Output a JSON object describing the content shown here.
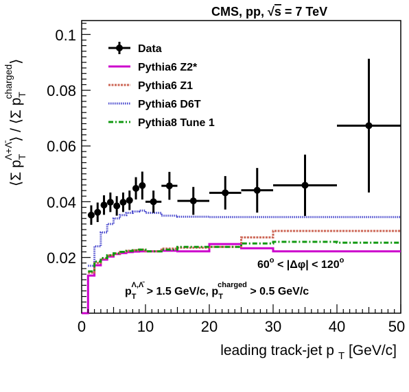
{
  "chart_data": {
    "type": "line",
    "title": "CMS, pp, √s = 7 TeV",
    "title_parts": {
      "prefix": "CMS, pp, ",
      "sqrt": "√",
      "s": "s",
      "suffix": " = 7 TeV"
    },
    "xlabel": {
      "main": "leading track-jet p",
      "sub": "T",
      "rest": " [GeV/c]"
    },
    "ylabel": {
      "open": "⟨Σ p",
      "sub": "T",
      "sup": "Λ+Λ̄",
      "middle": "⟩ / ⟨Σ p",
      "sub2": "T",
      "sup2": "charged",
      "close": "⟩"
    },
    "xlim": [
      0,
      50
    ],
    "ylim": [
      0,
      0.105
    ],
    "x_ticks": [
      0,
      10,
      20,
      30,
      40,
      50
    ],
    "x_tick_labels": [
      "0",
      "10",
      "20",
      "30",
      "40",
      "50"
    ],
    "y_ticks": [
      0.02,
      0.04,
      0.06,
      0.08,
      0.1
    ],
    "y_tick_labels": [
      "0.02",
      "0.04",
      "0.06",
      "0.08",
      "0.1"
    ],
    "legend_position": "top-left",
    "annotations": {
      "dphi": {
        "left": "60",
        "deg": "o",
        "mid": " < |Δφ| < 120",
        "deg2": "o"
      },
      "cuts": {
        "p1": "p",
        "sub1": "T",
        "sup1": "Λ,Λ̄",
        "mid": " > 1.5 GeV/c, p",
        "sub2": "T",
        "sup2": "charged",
        "end": " > 0.5 GeV/c"
      }
    },
    "data_series": {
      "name": "Data",
      "color": "#000000",
      "points": [
        {
          "x": 1.5,
          "xerr": 0.5,
          "y": 0.0352,
          "yerr": 0.0035
        },
        {
          "x": 2.5,
          "xerr": 0.5,
          "y": 0.0362,
          "yerr": 0.0035
        },
        {
          "x": 3.5,
          "xerr": 0.5,
          "y": 0.0388,
          "yerr": 0.0035
        },
        {
          "x": 4.5,
          "xerr": 0.5,
          "y": 0.0398,
          "yerr": 0.0035
        },
        {
          "x": 5.5,
          "xerr": 0.5,
          "y": 0.0385,
          "yerr": 0.0035
        },
        {
          "x": 6.5,
          "xerr": 0.5,
          "y": 0.0398,
          "yerr": 0.0035
        },
        {
          "x": 7.5,
          "xerr": 0.5,
          "y": 0.0405,
          "yerr": 0.0035
        },
        {
          "x": 8.5,
          "xerr": 0.5,
          "y": 0.0448,
          "yerr": 0.004
        },
        {
          "x": 9.5,
          "xerr": 0.5,
          "y": 0.0458,
          "yerr": 0.005
        },
        {
          "x": 11.25,
          "xerr": 1.25,
          "y": 0.04,
          "yerr": 0.004
        },
        {
          "x": 13.75,
          "xerr": 1.25,
          "y": 0.0457,
          "yerr": 0.005
        },
        {
          "x": 17.5,
          "xerr": 2.5,
          "y": 0.0403,
          "yerr": 0.005
        },
        {
          "x": 22.5,
          "xerr": 2.5,
          "y": 0.0432,
          "yerr": 0.006
        },
        {
          "x": 27.5,
          "xerr": 2.5,
          "y": 0.0441,
          "yerr": 0.008
        },
        {
          "x": 35,
          "xerr": 5,
          "y": 0.0459,
          "yerr": 0.011
        },
        {
          "x": 45,
          "xerr": 5,
          "y": 0.0673,
          "yerr": 0.024
        }
      ]
    },
    "series": [
      {
        "name": "Pythia6 Z2*",
        "color": "#cc00cc",
        "style": "solid",
        "steps": [
          [
            0,
            1,
            0.0
          ],
          [
            1,
            2,
            0.0135
          ],
          [
            2,
            3,
            0.0172
          ],
          [
            3,
            4,
            0.0192
          ],
          [
            4,
            5,
            0.0203
          ],
          [
            5,
            6,
            0.0212
          ],
          [
            6,
            7,
            0.0216
          ],
          [
            7,
            8,
            0.0219
          ],
          [
            8,
            9,
            0.0221
          ],
          [
            9,
            10,
            0.0222
          ],
          [
            10,
            12.5,
            0.0222
          ],
          [
            12.5,
            15,
            0.0224
          ],
          [
            15,
            20,
            0.0222
          ],
          [
            20,
            25,
            0.0248
          ],
          [
            25,
            30,
            0.0233
          ],
          [
            30,
            40,
            0.0222
          ],
          [
            40,
            50,
            0.0222
          ]
        ]
      },
      {
        "name": "Pythia6 Z1",
        "color": "#cc6655",
        "style": "dashed",
        "steps": [
          [
            1,
            2,
            0.0145
          ],
          [
            2,
            3,
            0.018
          ],
          [
            3,
            4,
            0.0196
          ],
          [
            4,
            5,
            0.0207
          ],
          [
            5,
            6,
            0.0214
          ],
          [
            6,
            7,
            0.022
          ],
          [
            7,
            8,
            0.0224
          ],
          [
            8,
            9,
            0.0226
          ],
          [
            9,
            10,
            0.0228
          ],
          [
            10,
            12.5,
            0.0222
          ],
          [
            12.5,
            15,
            0.0232
          ],
          [
            15,
            20,
            0.0235
          ],
          [
            20,
            25,
            0.0238
          ],
          [
            25,
            30,
            0.0272
          ],
          [
            30,
            40,
            0.0295
          ],
          [
            40,
            50,
            0.0295
          ]
        ]
      },
      {
        "name": "Pythia6 D6T",
        "color": "#4444cc",
        "style": "dotted",
        "steps": [
          [
            1,
            2,
            0.017
          ],
          [
            2,
            3,
            0.024
          ],
          [
            3,
            4,
            0.029
          ],
          [
            4,
            5,
            0.032
          ],
          [
            5,
            6,
            0.034
          ],
          [
            6,
            7,
            0.0352
          ],
          [
            7,
            8,
            0.036
          ],
          [
            8,
            9,
            0.0365
          ],
          [
            9,
            10,
            0.0368
          ],
          [
            10,
            12.5,
            0.036
          ],
          [
            12.5,
            15,
            0.035
          ],
          [
            15,
            20,
            0.0346
          ],
          [
            20,
            25,
            0.0345
          ],
          [
            25,
            30,
            0.0345
          ],
          [
            30,
            40,
            0.0345
          ],
          [
            40,
            50,
            0.0345
          ]
        ]
      },
      {
        "name": "Pythia8 Tune 1",
        "color": "#119911",
        "style": "dashdot",
        "steps": [
          [
            1,
            2,
            0.015
          ],
          [
            2,
            3,
            0.0185
          ],
          [
            3,
            4,
            0.0198
          ],
          [
            4,
            5,
            0.0208
          ],
          [
            5,
            6,
            0.0215
          ],
          [
            6,
            7,
            0.022
          ],
          [
            7,
            8,
            0.0223
          ],
          [
            8,
            9,
            0.0226
          ],
          [
            9,
            10,
            0.0228
          ],
          [
            10,
            12.5,
            0.0222
          ],
          [
            12.5,
            15,
            0.0228
          ],
          [
            15,
            20,
            0.0238
          ],
          [
            20,
            25,
            0.0238
          ],
          [
            25,
            30,
            0.025
          ],
          [
            30,
            40,
            0.0256
          ],
          [
            40,
            50,
            0.0253
          ]
        ]
      }
    ]
  }
}
